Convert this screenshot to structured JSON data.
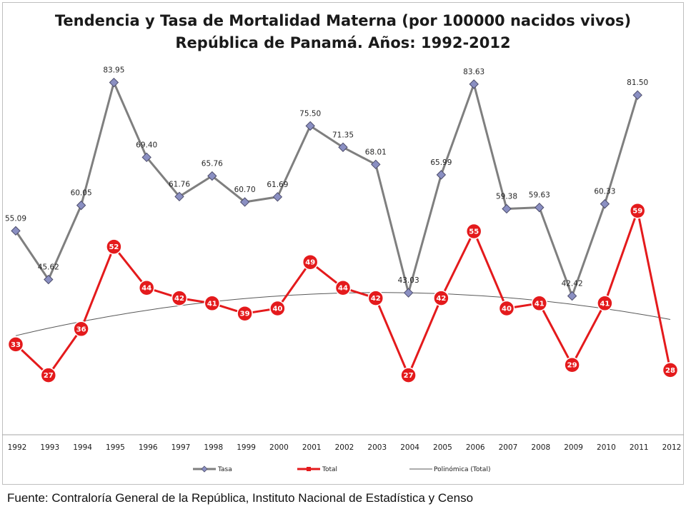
{
  "chart_data": {
    "type": "line",
    "title": [
      "Tendencia y Tasa de Mortalidad Materna (por 100000 nacidos vivos)",
      "República de Panamá.  Años: 1992-2012"
    ],
    "categories": [
      "1992",
      "1993",
      "1994",
      "1995",
      "1996",
      "1997",
      "1998",
      "1999",
      "2000",
      "2001",
      "2002",
      "2003",
      "2004",
      "2005",
      "2006",
      "2007",
      "2008",
      "2009",
      "2010",
      "2011",
      "2012"
    ],
    "series": [
      {
        "name": "Tasa",
        "color": "#7f7f7f",
        "marker_color": "#8a8fc2",
        "values": [
          55.09,
          45.62,
          60.05,
          83.95,
          69.4,
          61.76,
          65.76,
          60.7,
          61.69,
          75.5,
          71.35,
          68.01,
          43.03,
          65.99,
          83.63,
          59.38,
          59.63,
          42.42,
          60.33,
          81.5,
          null
        ],
        "labels": [
          "55.09",
          "45.62",
          "60.05",
          "83.95",
          "69.40",
          "61.76",
          "65.76",
          "60.70",
          "61.69",
          "75.50",
          "71.35",
          "68.01",
          "43.03",
          "65.99",
          "83.63",
          "59.38",
          "59.63",
          "42.42",
          "60.33",
          "81.50",
          null
        ]
      },
      {
        "name": "Total",
        "color": "#e41a1c",
        "values": [
          33,
          27,
          36,
          52,
          44,
          42,
          41,
          39,
          40,
          49,
          44,
          42,
          27,
          42,
          55,
          40,
          41,
          29,
          41,
          59,
          28
        ],
        "labels": [
          "33",
          "27",
          "36",
          "52",
          "44",
          "42",
          "41",
          "39",
          "40",
          "49",
          "44",
          "42",
          "27",
          "42",
          "55",
          "40",
          "41",
          "29",
          "41",
          "59",
          "28"
        ]
      },
      {
        "name": "Polinómica (Total)",
        "color": "#595959",
        "kind": "trendline"
      }
    ],
    "ylim": [
      0,
      100
    ],
    "legend": "bottom",
    "grid": false
  },
  "source_note": "Fuente: Contraloría General de la República, Instituto Nacional de Estadística y Censo"
}
